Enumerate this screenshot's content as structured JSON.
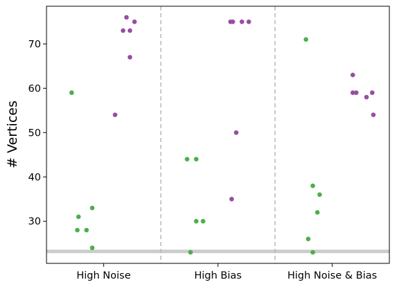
{
  "chart_data": {
    "type": "scatter",
    "title": "",
    "xlabel": "",
    "ylabel": "# Vertices",
    "categories": [
      "High Noise",
      "High Bias",
      "High Noise & Bias"
    ],
    "ylim": [
      20.5,
      78.5
    ],
    "yticks": [
      30,
      40,
      50,
      60,
      70
    ],
    "grid": false,
    "reference_line": {
      "value": 23.2,
      "color": "#cccccc"
    },
    "separators": "dashed vertical lines between categories",
    "series": [
      {
        "color": "#4daf4a",
        "points": [
          {
            "category": "High Noise",
            "offset": -0.28,
            "y": 59
          },
          {
            "category": "High Noise",
            "offset": -0.22,
            "y": 31
          },
          {
            "category": "High Noise",
            "offset": -0.23,
            "y": 28
          },
          {
            "category": "High Noise",
            "offset": -0.15,
            "y": 28
          },
          {
            "category": "High Noise",
            "offset": -0.1,
            "y": 33
          },
          {
            "category": "High Noise",
            "offset": -0.1,
            "y": 24
          },
          {
            "category": "High Bias",
            "offset": -0.27,
            "y": 44
          },
          {
            "category": "High Bias",
            "offset": -0.24,
            "y": 23
          },
          {
            "category": "High Bias",
            "offset": -0.19,
            "y": 44
          },
          {
            "category": "High Bias",
            "offset": -0.19,
            "y": 30
          },
          {
            "category": "High Bias",
            "offset": -0.13,
            "y": 30
          },
          {
            "category": "High Noise & Bias",
            "offset": -0.23,
            "y": 71
          },
          {
            "category": "High Noise & Bias",
            "offset": -0.21,
            "y": 26
          },
          {
            "category": "High Noise & Bias",
            "offset": -0.17,
            "y": 38
          },
          {
            "category": "High Noise & Bias",
            "offset": -0.17,
            "y": 23
          },
          {
            "category": "High Noise & Bias",
            "offset": -0.13,
            "y": 32
          },
          {
            "category": "High Noise & Bias",
            "offset": -0.11,
            "y": 36
          }
        ]
      },
      {
        "color": "#984ea3",
        "points": [
          {
            "category": "High Noise",
            "offset": 0.1,
            "y": 54
          },
          {
            "category": "High Noise",
            "offset": 0.17,
            "y": 73
          },
          {
            "category": "High Noise",
            "offset": 0.2,
            "y": 76
          },
          {
            "category": "High Noise",
            "offset": 0.23,
            "y": 73
          },
          {
            "category": "High Noise",
            "offset": 0.23,
            "y": 67
          },
          {
            "category": "High Noise",
            "offset": 0.27,
            "y": 75
          },
          {
            "category": "High Bias",
            "offset": 0.11,
            "y": 75
          },
          {
            "category": "High Bias",
            "offset": 0.13,
            "y": 75
          },
          {
            "category": "High Bias",
            "offset": 0.12,
            "y": 35
          },
          {
            "category": "High Bias",
            "offset": 0.16,
            "y": 50
          },
          {
            "category": "High Bias",
            "offset": 0.21,
            "y": 75
          },
          {
            "category": "High Bias",
            "offset": 0.27,
            "y": 75
          },
          {
            "category": "High Noise & Bias",
            "offset": 0.18,
            "y": 63
          },
          {
            "category": "High Noise & Bias",
            "offset": 0.18,
            "y": 59
          },
          {
            "category": "High Noise & Bias",
            "offset": 0.21,
            "y": 59
          },
          {
            "category": "High Noise & Bias",
            "offset": 0.3,
            "y": 58
          },
          {
            "category": "High Noise & Bias",
            "offset": 0.35,
            "y": 59
          },
          {
            "category": "High Noise & Bias",
            "offset": 0.36,
            "y": 54
          }
        ]
      }
    ]
  }
}
